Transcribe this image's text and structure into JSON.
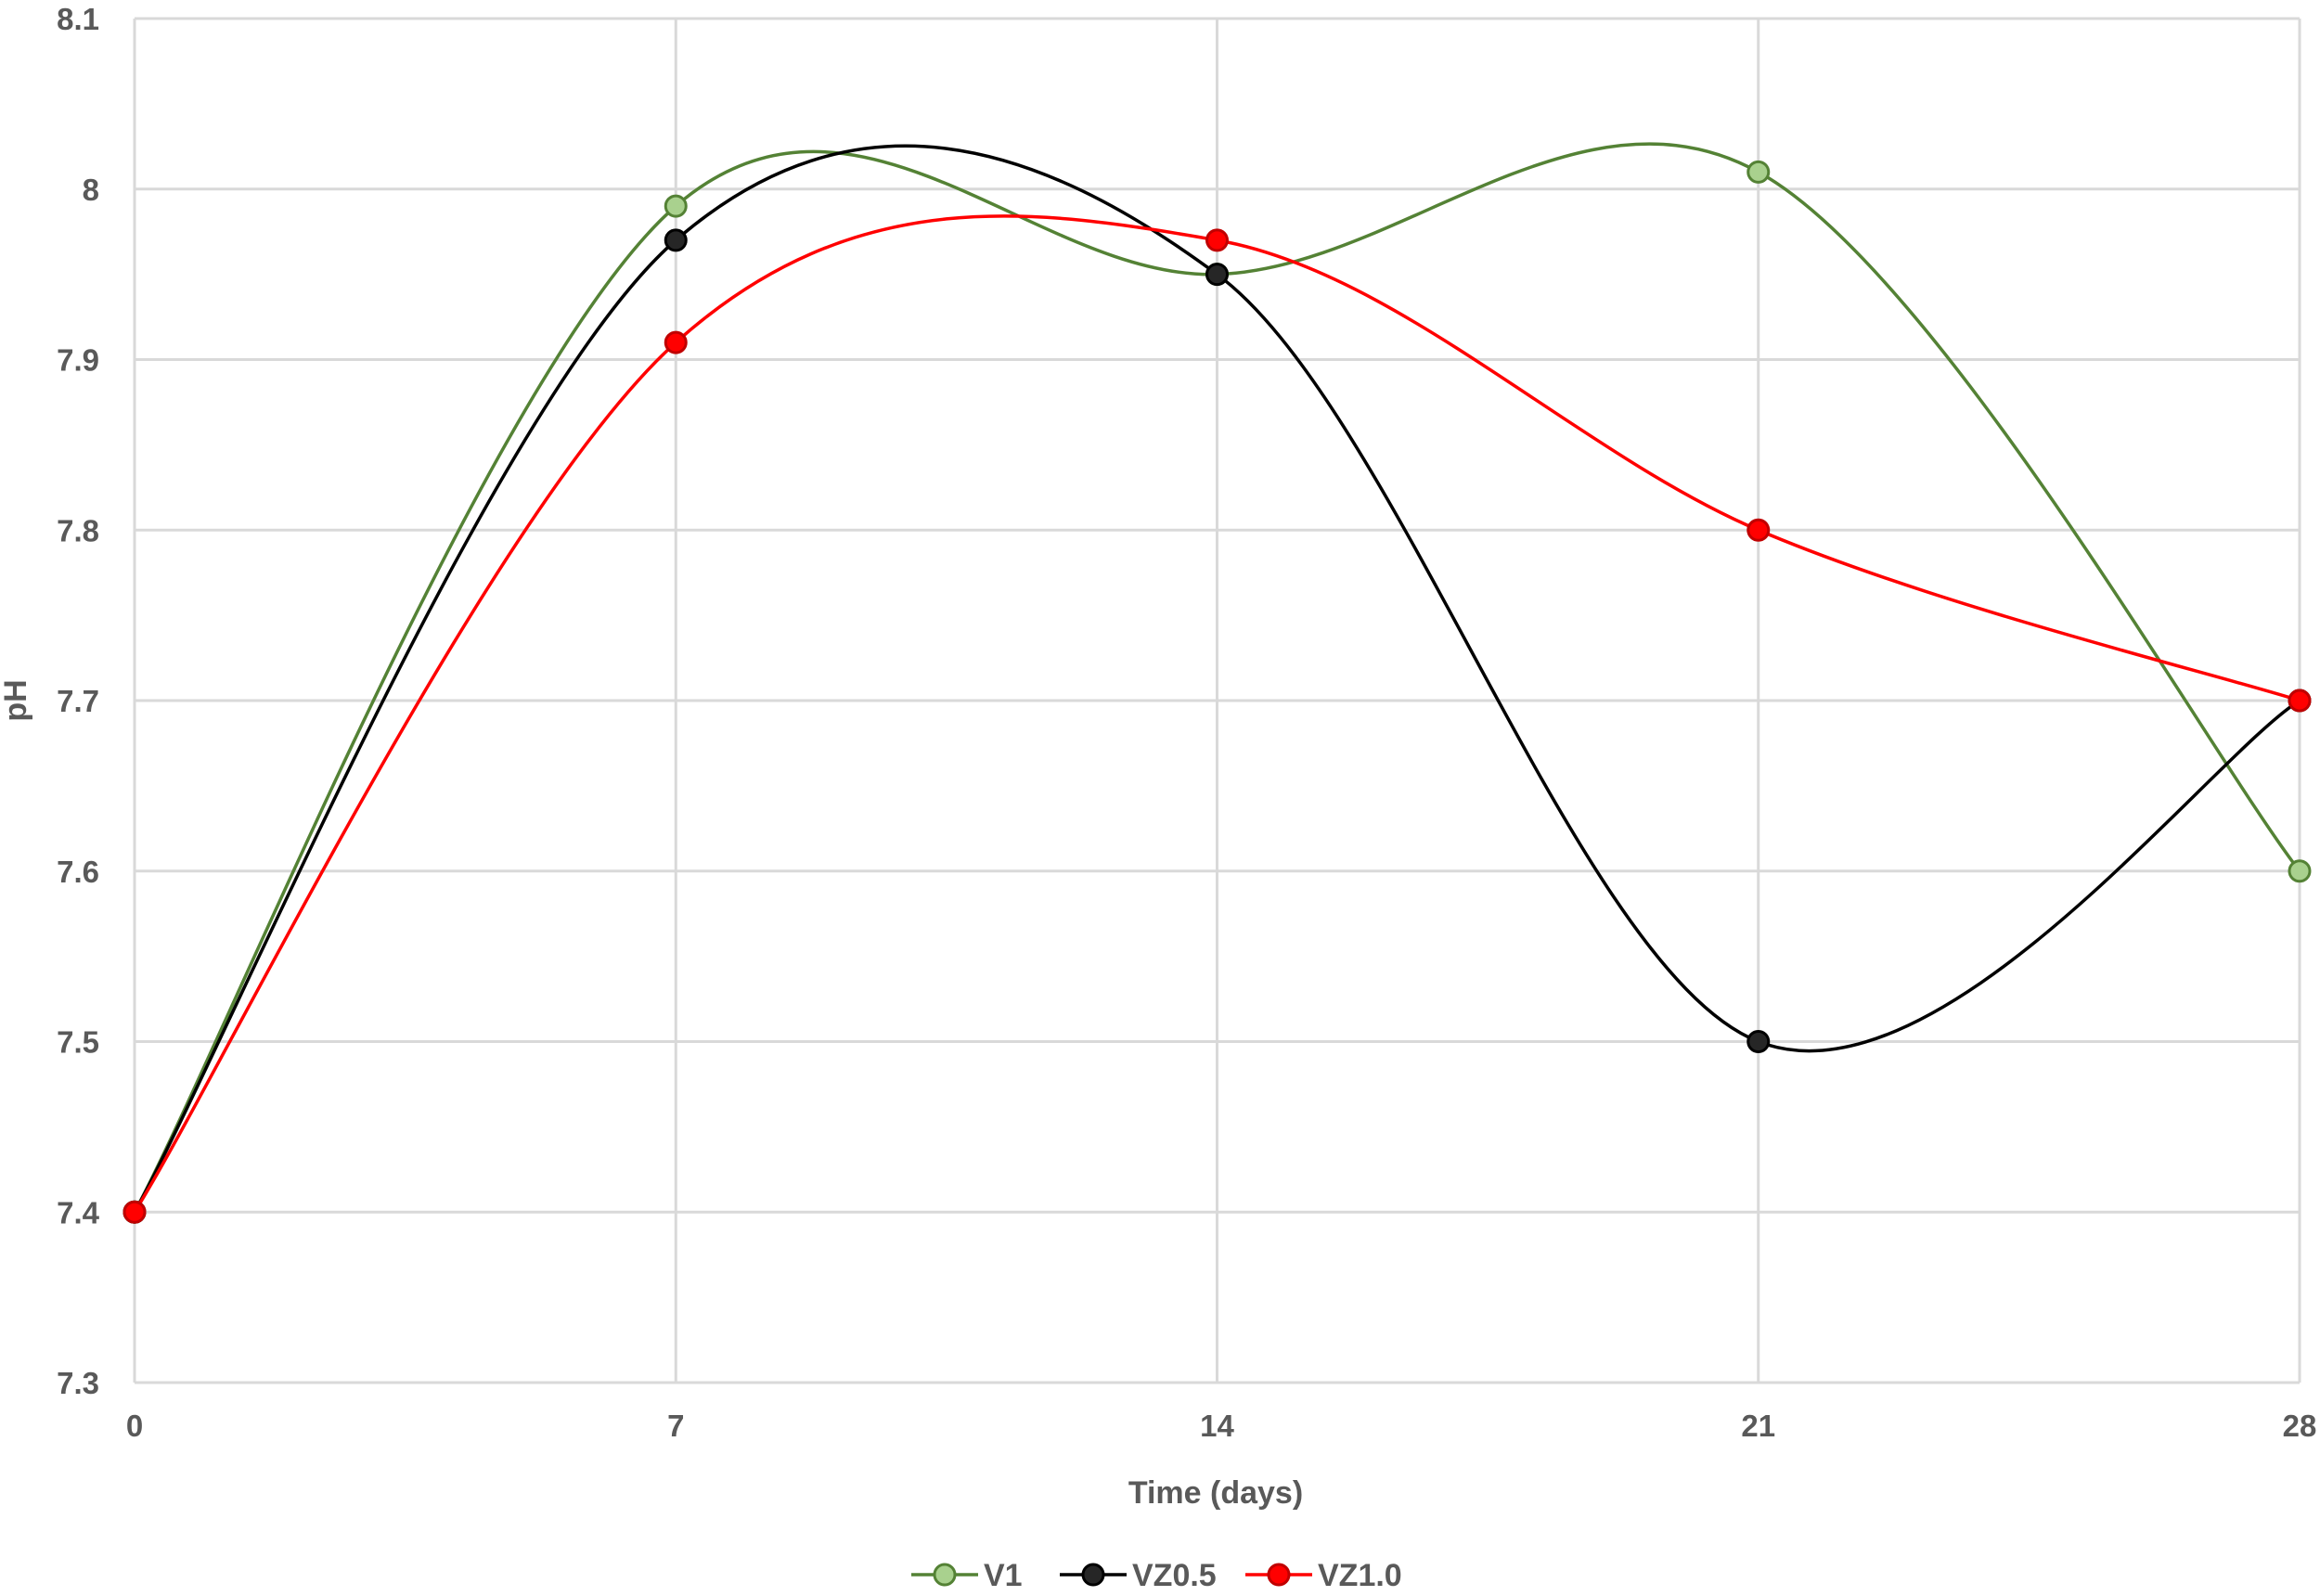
{
  "chart_data": {
    "type": "line",
    "title": "",
    "xlabel": "Time (days)",
    "ylabel": "pH",
    "x": [
      0,
      7,
      14,
      21,
      28
    ],
    "x_ticks": [
      "0",
      "7",
      "14",
      "21",
      "28"
    ],
    "y_ticks": [
      "7.3",
      "7.4",
      "7.5",
      "7.6",
      "7.7",
      "7.8",
      "7.9",
      "8",
      "8.1"
    ],
    "xlim": [
      0,
      28
    ],
    "ylim": [
      7.3,
      8.1
    ],
    "grid": true,
    "smooth": true,
    "legend_position": "bottom",
    "series": [
      {
        "name": "V1",
        "values": [
          7.4,
          7.99,
          7.95,
          8.01,
          7.6
        ],
        "line_color": "#548235",
        "marker_fill": "#a9d18e",
        "marker_stroke": "#548235"
      },
      {
        "name": "VZ0.5",
        "values": [
          7.4,
          7.97,
          7.95,
          7.5,
          7.7
        ],
        "line_color": "#000000",
        "marker_fill": "#262626",
        "marker_stroke": "#000000"
      },
      {
        "name": "VZ1.0",
        "values": [
          7.4,
          7.91,
          7.97,
          7.8,
          7.7
        ],
        "line_color": "#ff0000",
        "marker_fill": "#ff0000",
        "marker_stroke": "#c00000"
      }
    ]
  }
}
